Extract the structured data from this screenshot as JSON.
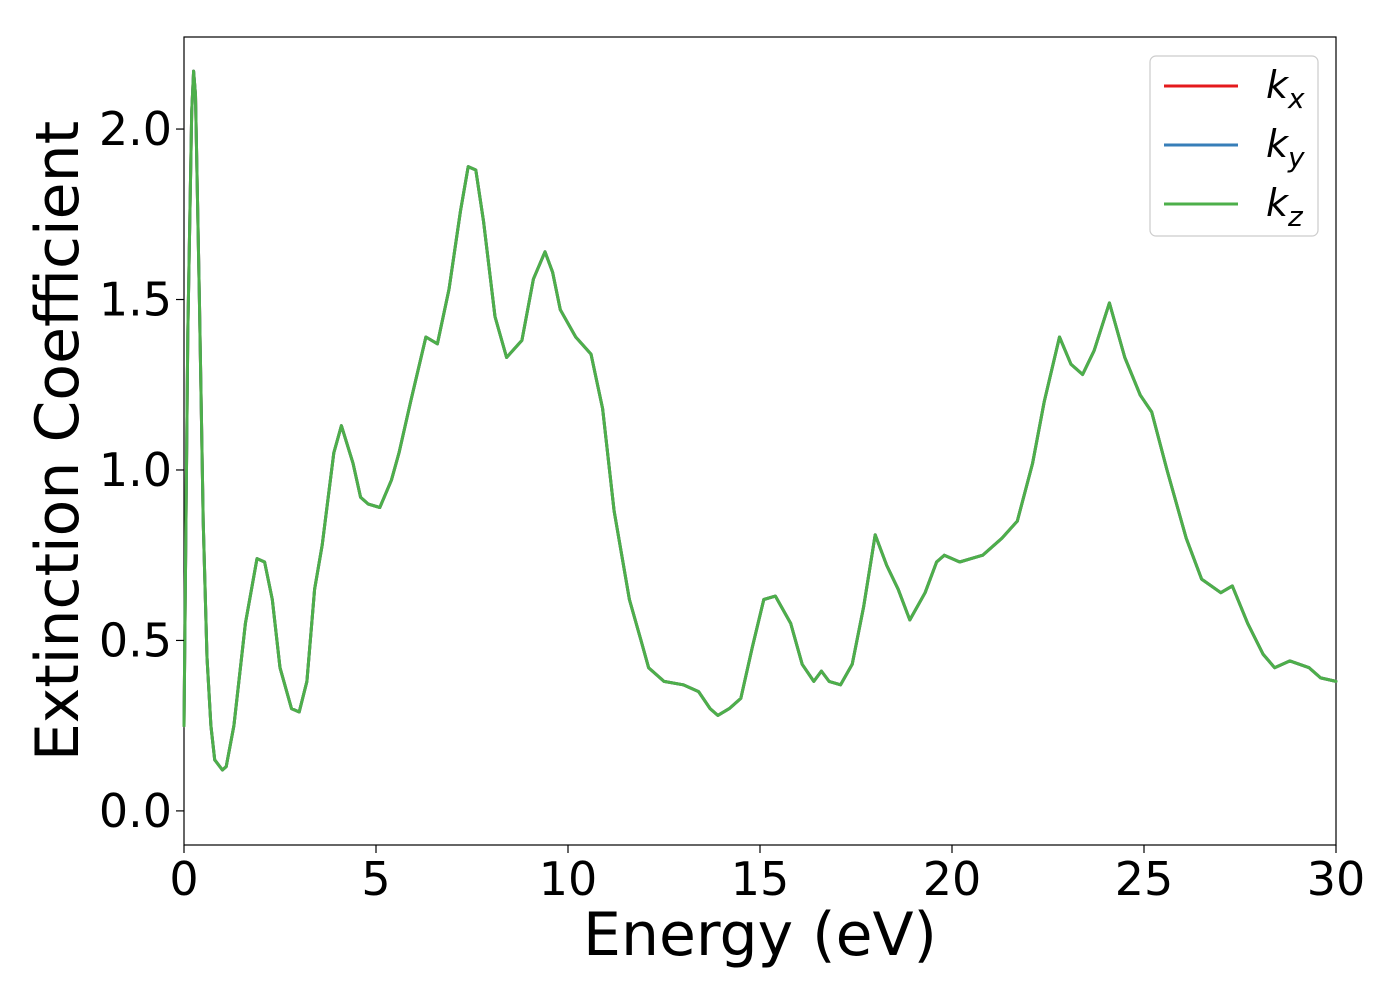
{
  "chart_data": {
    "type": "line",
    "title": "",
    "xlabel": "Energy (eV)",
    "ylabel": "Extinction Coefficient",
    "xlim": [
      0,
      30
    ],
    "ylim": [
      -0.1,
      2.27
    ],
    "xticks": [
      0,
      5,
      10,
      15,
      20,
      25,
      30
    ],
    "yticks": [
      0.0,
      0.5,
      1.0,
      1.5,
      2.0
    ],
    "xtick_labels": [
      "0",
      "5",
      "10",
      "15",
      "20",
      "25",
      "30"
    ],
    "ytick_labels": [
      "0.0",
      "0.5",
      "1.0",
      "1.5",
      "2.0"
    ],
    "grid": false,
    "legend_position": "top-right",
    "x": [
      0.0,
      0.1,
      0.2,
      0.25,
      0.3,
      0.4,
      0.5,
      0.6,
      0.7,
      0.8,
      1.0,
      1.1,
      1.3,
      1.6,
      1.9,
      2.1,
      2.3,
      2.5,
      2.8,
      3.0,
      3.2,
      3.4,
      3.6,
      3.9,
      4.1,
      4.4,
      4.6,
      4.8,
      5.1,
      5.4,
      5.6,
      5.9,
      6.3,
      6.6,
      6.9,
      7.2,
      7.4,
      7.6,
      7.8,
      8.1,
      8.4,
      8.8,
      9.1,
      9.4,
      9.6,
      9.8,
      10.2,
      10.6,
      10.9,
      11.2,
      11.6,
      11.9,
      12.1,
      12.5,
      13.0,
      13.4,
      13.7,
      13.9,
      14.2,
      14.5,
      14.8,
      15.1,
      15.4,
      15.8,
      16.1,
      16.4,
      16.6,
      16.8,
      17.1,
      17.4,
      17.7,
      18.0,
      18.3,
      18.6,
      18.9,
      19.3,
      19.6,
      19.8,
      20.2,
      20.5,
      20.8,
      21.3,
      21.7,
      22.1,
      22.4,
      22.8,
      23.1,
      23.4,
      23.7,
      24.1,
      24.5,
      24.9,
      25.2,
      25.6,
      26.1,
      26.5,
      27.0,
      27.3,
      27.7,
      28.1,
      28.4,
      28.8,
      29.3,
      29.6,
      30.0
    ],
    "series": [
      {
        "name": "k_x",
        "color": "#e41a1c",
        "values": [
          0.25,
          1.4,
          2.05,
          2.17,
          2.1,
          1.5,
          0.85,
          0.45,
          0.25,
          0.15,
          0.12,
          0.13,
          0.25,
          0.55,
          0.74,
          0.73,
          0.62,
          0.42,
          0.3,
          0.29,
          0.38,
          0.65,
          0.78,
          1.05,
          1.13,
          1.02,
          0.92,
          0.9,
          0.89,
          0.97,
          1.05,
          1.2,
          1.39,
          1.37,
          1.53,
          1.76,
          1.89,
          1.88,
          1.73,
          1.45,
          1.33,
          1.38,
          1.56,
          1.64,
          1.58,
          1.47,
          1.39,
          1.34,
          1.18,
          0.88,
          0.62,
          0.5,
          0.42,
          0.38,
          0.37,
          0.35,
          0.3,
          0.28,
          0.3,
          0.33,
          0.48,
          0.62,
          0.63,
          0.55,
          0.43,
          0.38,
          0.41,
          0.38,
          0.37,
          0.43,
          0.6,
          0.81,
          0.72,
          0.65,
          0.56,
          0.64,
          0.73,
          0.75,
          0.73,
          0.74,
          0.75,
          0.8,
          0.85,
          1.02,
          1.2,
          1.39,
          1.31,
          1.28,
          1.35,
          1.49,
          1.33,
          1.22,
          1.17,
          1.0,
          0.8,
          0.68,
          0.64,
          0.66,
          0.55,
          0.46,
          0.42,
          0.44,
          0.42,
          0.39,
          0.38
        ]
      },
      {
        "name": "k_y",
        "color": "#377eb8",
        "values": [
          0.25,
          1.4,
          2.05,
          2.17,
          2.1,
          1.5,
          0.85,
          0.45,
          0.25,
          0.15,
          0.12,
          0.13,
          0.25,
          0.55,
          0.74,
          0.73,
          0.62,
          0.42,
          0.3,
          0.29,
          0.38,
          0.65,
          0.78,
          1.05,
          1.13,
          1.02,
          0.92,
          0.9,
          0.89,
          0.97,
          1.05,
          1.2,
          1.39,
          1.37,
          1.53,
          1.76,
          1.89,
          1.88,
          1.73,
          1.45,
          1.33,
          1.38,
          1.56,
          1.64,
          1.58,
          1.47,
          1.39,
          1.34,
          1.18,
          0.88,
          0.62,
          0.5,
          0.42,
          0.38,
          0.37,
          0.35,
          0.3,
          0.28,
          0.3,
          0.33,
          0.48,
          0.62,
          0.63,
          0.55,
          0.43,
          0.38,
          0.41,
          0.38,
          0.37,
          0.43,
          0.6,
          0.81,
          0.72,
          0.65,
          0.56,
          0.64,
          0.73,
          0.75,
          0.73,
          0.74,
          0.75,
          0.8,
          0.85,
          1.02,
          1.2,
          1.39,
          1.31,
          1.28,
          1.35,
          1.49,
          1.33,
          1.22,
          1.17,
          1.0,
          0.8,
          0.68,
          0.64,
          0.66,
          0.55,
          0.46,
          0.42,
          0.44,
          0.42,
          0.39,
          0.38
        ]
      },
      {
        "name": "k_z",
        "color": "#4daf4a",
        "values": [
          0.25,
          1.4,
          2.05,
          2.17,
          2.1,
          1.5,
          0.85,
          0.45,
          0.25,
          0.15,
          0.12,
          0.13,
          0.25,
          0.55,
          0.74,
          0.73,
          0.62,
          0.42,
          0.3,
          0.29,
          0.38,
          0.65,
          0.78,
          1.05,
          1.13,
          1.02,
          0.92,
          0.9,
          0.89,
          0.97,
          1.05,
          1.2,
          1.39,
          1.37,
          1.53,
          1.76,
          1.89,
          1.88,
          1.73,
          1.45,
          1.33,
          1.38,
          1.56,
          1.64,
          1.58,
          1.47,
          1.39,
          1.34,
          1.18,
          0.88,
          0.62,
          0.5,
          0.42,
          0.38,
          0.37,
          0.35,
          0.3,
          0.28,
          0.3,
          0.33,
          0.48,
          0.62,
          0.63,
          0.55,
          0.43,
          0.38,
          0.41,
          0.38,
          0.37,
          0.43,
          0.6,
          0.81,
          0.72,
          0.65,
          0.56,
          0.64,
          0.73,
          0.75,
          0.73,
          0.74,
          0.75,
          0.8,
          0.85,
          1.02,
          1.2,
          1.39,
          1.31,
          1.28,
          1.35,
          1.49,
          1.33,
          1.22,
          1.17,
          1.0,
          0.8,
          0.68,
          0.64,
          0.66,
          0.55,
          0.46,
          0.42,
          0.44,
          0.42,
          0.39,
          0.38
        ]
      }
    ],
    "legend": [
      {
        "main": "k",
        "sub": "x",
        "series": "k_x"
      },
      {
        "main": "k",
        "sub": "y",
        "series": "k_y"
      },
      {
        "main": "k",
        "sub": "z",
        "series": "k_z"
      }
    ]
  }
}
